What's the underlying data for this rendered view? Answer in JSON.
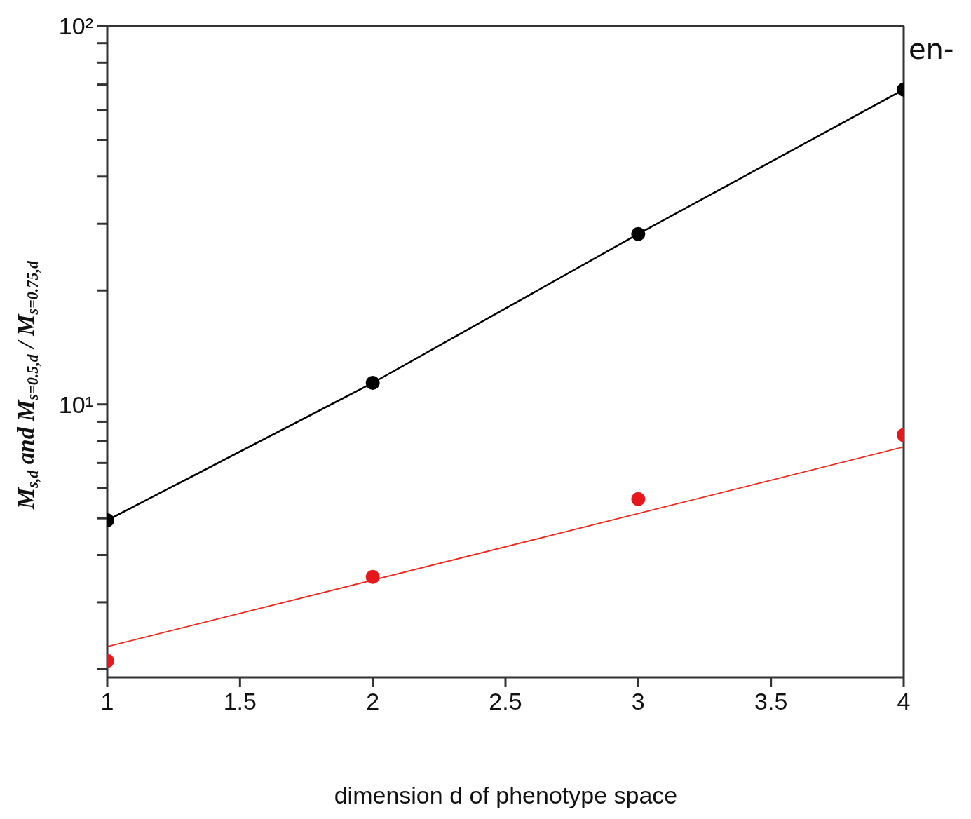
{
  "chart_data": {
    "type": "line",
    "xlabel": "dimension d of phenotype space",
    "ylabel": "M$_{s,d}$ and M$_{s=0.5,d}$ / M$_{s=0.75,d}$",
    "log": "y",
    "xlim": [
      1,
      4
    ],
    "xticks": [
      1,
      1.5,
      2,
      2.5,
      3,
      3.5,
      4
    ],
    "ylim": [
      1.9,
      100
    ],
    "yticks": [
      {
        "value": 2,
        "label": null
      },
      {
        "value": 3,
        "label": null
      },
      {
        "value": 4,
        "label": null
      },
      {
        "value": 5,
        "label": null
      },
      {
        "value": 6,
        "label": null
      },
      {
        "value": 7,
        "label": null
      },
      {
        "value": 8,
        "label": null
      },
      {
        "value": 9,
        "label": null
      },
      {
        "value": 10,
        "label": "10¹"
      },
      {
        "value": 20,
        "label": null
      },
      {
        "value": 30,
        "label": null
      },
      {
        "value": 40,
        "label": null
      },
      {
        "value": 50,
        "label": null
      },
      {
        "value": 60,
        "label": null
      },
      {
        "value": 70,
        "label": null
      },
      {
        "value": 80,
        "label": null
      },
      {
        "value": 90,
        "label": null
      },
      {
        "value": 100,
        "label": "10²"
      }
    ],
    "annotations": [
      "en-"
    ],
    "series": [
      {
        "color": "#000000",
        "marker": "circle",
        "x": [
          1,
          2,
          3,
          4
        ],
        "values": [
          4.94,
          11.4,
          28.2,
          67.9
        ]
      },
      {
        "type": "scatter",
        "color": "#e8171c",
        "marker": "circle",
        "x": [
          1,
          2,
          3,
          4
        ],
        "values": [
          2.1,
          3.5,
          5.62,
          8.3
        ]
      },
      {
        "type": "line",
        "color": "#f0281e",
        "marker": "none",
        "x": [
          1,
          4
        ],
        "values": [
          2.29,
          7.72
        ]
      }
    ]
  }
}
